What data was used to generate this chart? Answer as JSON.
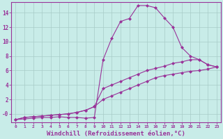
{
  "background_color": "#c8ece8",
  "grid_color": "#a8ccc8",
  "line_color": "#993399",
  "xlabel": "Windchill (Refroidissement éolien,°C)",
  "xlabel_fontsize": 6.5,
  "xtick_labels": [
    "0",
    "1",
    "2",
    "3",
    "4",
    "5",
    "6",
    "7",
    "8",
    "9",
    "10",
    "11",
    "12",
    "13",
    "14",
    "15",
    "16",
    "17",
    "18",
    "19",
    "20",
    "21",
    "22",
    "23"
  ],
  "xlim": [
    -0.5,
    23.5
  ],
  "ylim": [
    -1.2,
    15.5
  ],
  "ytick_vals": [
    0,
    2,
    4,
    6,
    8,
    10,
    12,
    14
  ],
  "ytick_labels": [
    "-0",
    "2",
    "4",
    "6",
    "8",
    "10",
    "12",
    "14"
  ],
  "curve1_x": [
    0,
    1,
    2,
    3,
    4,
    5,
    6,
    7,
    8,
    9,
    10,
    11,
    12,
    13,
    14,
    15,
    16,
    17,
    18,
    19,
    20,
    21,
    22,
    23
  ],
  "curve1_y": [
    -0.8,
    -0.7,
    -0.6,
    -0.5,
    -0.5,
    -0.4,
    -0.5,
    -0.5,
    -0.6,
    -0.5,
    7.5,
    10.5,
    12.8,
    13.2,
    15.0,
    15.0,
    14.7,
    13.3,
    12.0,
    9.2,
    8.0,
    7.5,
    6.8,
    6.5
  ],
  "curve2_x": [
    0,
    1,
    2,
    3,
    4,
    5,
    6,
    7,
    8,
    9,
    10,
    11,
    12,
    13,
    14,
    15,
    16,
    17,
    18,
    19,
    20,
    21,
    22,
    23
  ],
  "curve2_y": [
    -0.8,
    -0.5,
    -0.4,
    -0.3,
    -0.2,
    -0.1,
    0.0,
    0.2,
    0.5,
    1.0,
    3.5,
    4.0,
    4.5,
    5.0,
    5.5,
    6.0,
    6.3,
    6.6,
    7.0,
    7.2,
    7.5,
    7.5,
    6.8,
    6.5
  ],
  "curve3_x": [
    0,
    1,
    2,
    3,
    4,
    5,
    6,
    7,
    8,
    9,
    10,
    11,
    12,
    13,
    14,
    15,
    16,
    17,
    18,
    19,
    20,
    21,
    22,
    23
  ],
  "curve3_y": [
    -0.8,
    -0.5,
    -0.4,
    -0.3,
    -0.2,
    -0.1,
    0.0,
    0.2,
    0.5,
    1.0,
    2.0,
    2.5,
    3.0,
    3.5,
    4.0,
    4.5,
    5.0,
    5.3,
    5.5,
    5.7,
    5.9,
    6.0,
    6.2,
    6.5
  ],
  "marker": "D",
  "markersize": 2.0,
  "linewidth": 0.8
}
